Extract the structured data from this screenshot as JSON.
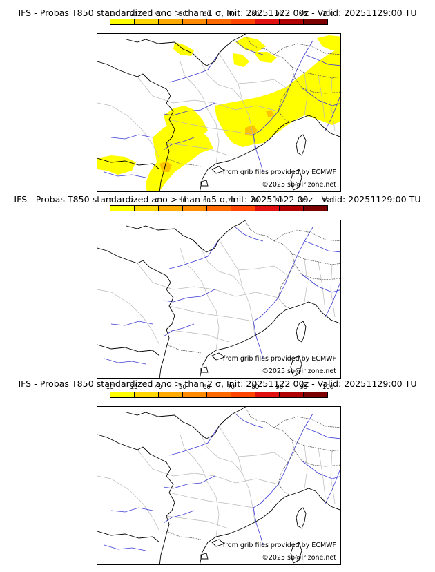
{
  "colorbar": {
    "ticks": [
      "10",
      "25",
      "40",
      "50",
      "60",
      "70",
      "80",
      "90",
      "95",
      "100"
    ],
    "colors": [
      "#ffff00",
      "#ffd700",
      "#ffaa00",
      "#ff8c00",
      "#ff6a00",
      "#ff4500",
      "#e01010",
      "#b00000",
      "#7a0000"
    ]
  },
  "panels": [
    {
      "title": "IFS - Probas T850  standardized ano > than 1 σ, Init: 20251122 00z - Valid: 20251129:00 TU",
      "source": "from grib files provided by ECMWF",
      "copyright": "©2025 sb@irizone.net",
      "has_anomaly": true
    },
    {
      "title": "IFS - Probas T850  standardized ano > than 1.5 σ, Init: 20251122 00z - Valid: 20251129:00 TU",
      "source": "from grib files provided by ECMWF",
      "copyright": "©2025 sb@irizone.net",
      "has_anomaly": false
    },
    {
      "title": "IFS - Probas T850  standardized ano > than 2 σ, Init: 20251122 00z - Valid: 20251129:00 TU",
      "source": "from grib files provided by ECMWF",
      "copyright": "©2025 sb@irizone.net",
      "has_anomaly": false
    }
  ]
}
